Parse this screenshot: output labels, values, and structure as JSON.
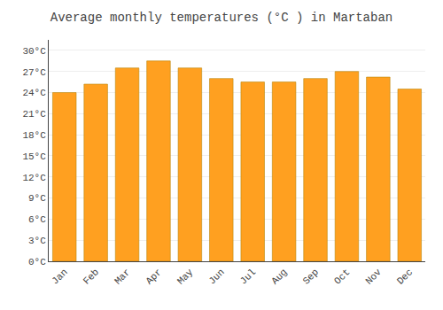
{
  "chart_data": {
    "type": "bar",
    "title": "Average monthly temperatures (°C ) in Martaban",
    "categories": [
      "Jan",
      "Feb",
      "Mar",
      "Apr",
      "May",
      "Jun",
      "Jul",
      "Aug",
      "Sep",
      "Oct",
      "Nov",
      "Dec"
    ],
    "values": [
      24.0,
      25.2,
      27.5,
      28.5,
      27.5,
      26.0,
      25.5,
      25.5,
      26.0,
      27.0,
      26.2,
      24.5
    ],
    "color": "#FFA020",
    "ylim": [
      0,
      31.5
    ],
    "yticks": [
      {
        "value": 0,
        "label": "0°C"
      },
      {
        "value": 3,
        "label": "3°C"
      },
      {
        "value": 6,
        "label": "6°C"
      },
      {
        "value": 9,
        "label": "9°C"
      },
      {
        "value": 12,
        "label": "12°C"
      },
      {
        "value": 15,
        "label": "15°C"
      },
      {
        "value": 18,
        "label": "18°C"
      },
      {
        "value": 21,
        "label": "21°C"
      },
      {
        "value": 24,
        "label": "24°C"
      },
      {
        "value": 27,
        "label": "27°C"
      },
      {
        "value": 30,
        "label": "30°C"
      }
    ],
    "grid": true
  }
}
